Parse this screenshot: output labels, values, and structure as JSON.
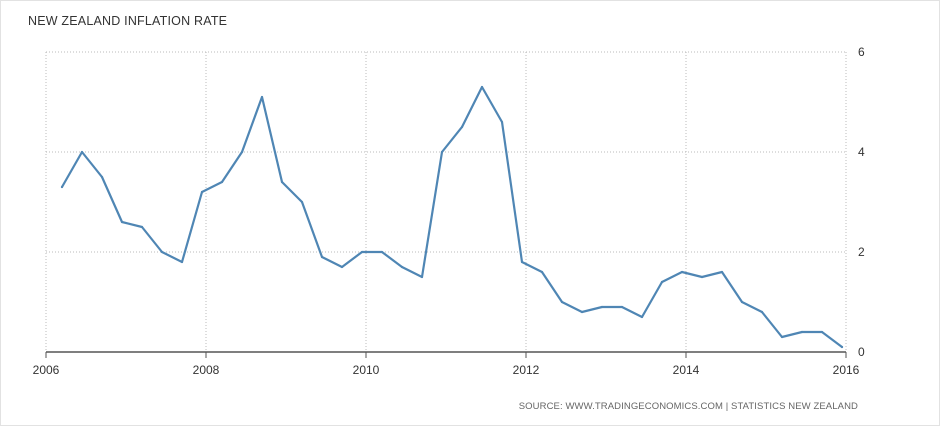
{
  "chart_data": {
    "type": "line",
    "title": "NEW ZEALAND INFLATION RATE",
    "source": "SOURCE: WWW.TRADINGECONOMICS.COM | STATISTICS NEW ZEALAND",
    "xlabel": "",
    "ylabel": "",
    "xlim": [
      2006,
      2016
    ],
    "ylim": [
      0,
      6
    ],
    "x_ticks": [
      "2006",
      "2008",
      "2010",
      "2012",
      "2014",
      "2016"
    ],
    "y_ticks": [
      "0",
      "2",
      "4",
      "6"
    ],
    "grid": true,
    "colors": {
      "line": "#4f86b4",
      "grid": "#bbbbbb",
      "axis": "#555555"
    },
    "series": [
      {
        "x": [
          2006.2,
          2006.45,
          2006.7,
          2006.95,
          2007.2,
          2007.45,
          2007.7,
          2007.95,
          2008.2,
          2008.45,
          2008.7,
          2008.95,
          2009.2,
          2009.45,
          2009.7,
          2009.95,
          2010.2,
          2010.45,
          2010.7,
          2010.95,
          2011.2,
          2011.45,
          2011.7,
          2011.95,
          2012.2,
          2012.45,
          2012.7,
          2012.95,
          2013.2,
          2013.45,
          2013.7,
          2013.95,
          2014.2,
          2014.45,
          2014.7,
          2014.95,
          2015.2,
          2015.45,
          2015.7,
          2015.95
        ],
        "values": [
          3.3,
          4.0,
          3.5,
          2.6,
          2.5,
          2.0,
          1.8,
          3.2,
          3.4,
          4.0,
          5.1,
          3.4,
          3.0,
          1.9,
          1.7,
          2.0,
          2.0,
          1.7,
          1.5,
          4.0,
          4.5,
          5.3,
          4.6,
          1.8,
          1.6,
          1.0,
          0.8,
          0.9,
          0.9,
          0.7,
          1.4,
          1.6,
          1.5,
          1.6,
          1.0,
          0.8,
          0.3,
          0.4,
          0.4,
          0.1
        ]
      }
    ]
  }
}
